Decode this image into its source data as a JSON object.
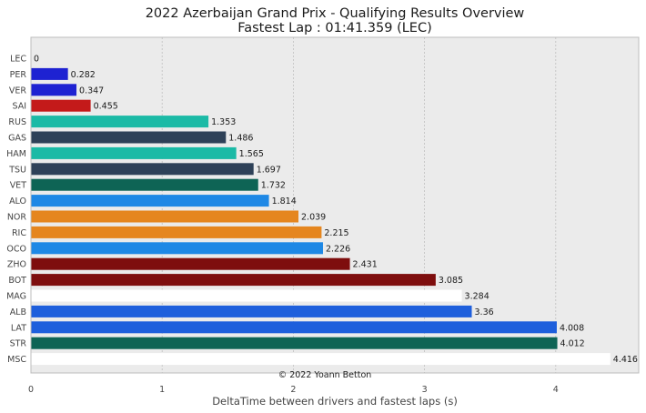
{
  "chart_data": {
    "type": "bar",
    "orientation": "horizontal",
    "title": "2022 Azerbaijan Grand Prix - Qualifying Results Overview",
    "subtitle": "Fastest Lap : 01:41.359 (LEC)",
    "xlabel": "DeltaTime between drivers and fastest laps (s)",
    "ylabel": "",
    "xlim": [
      0,
      4.64
    ],
    "xticks": [
      "0",
      "1",
      "2",
      "3",
      "4"
    ],
    "grid": true,
    "annotation": "© 2022 Yoann Betton",
    "categories": [
      "LEC",
      "PER",
      "VER",
      "SAI",
      "RUS",
      "GAS",
      "HAM",
      "TSU",
      "VET",
      "ALO",
      "NOR",
      "RIC",
      "OCO",
      "ZHO",
      "BOT",
      "MAG",
      "ALB",
      "LAT",
      "STR",
      "MSC"
    ],
    "values": [
      0,
      0.282,
      0.347,
      0.455,
      1.353,
      1.486,
      1.565,
      1.697,
      1.732,
      1.814,
      2.039,
      2.215,
      2.226,
      2.431,
      3.085,
      3.284,
      3.36,
      4.008,
      4.012,
      4.416
    ],
    "value_labels": [
      "0",
      "0.282",
      "0.347",
      "0.455",
      "1.353",
      "1.486",
      "1.565",
      "1.697",
      "1.732",
      "1.814",
      "2.039",
      "2.215",
      "2.226",
      "2.431",
      "3.085",
      "3.284",
      "3.36",
      "4.008",
      "4.012",
      "4.416"
    ],
    "colors": [
      "#dc0000",
      "#1e22d2",
      "#1e22d2",
      "#c41a1a",
      "#1bbaa6",
      "#2e4158",
      "#1bbaa6",
      "#2e4158",
      "#0e6455",
      "#1e88e5",
      "#e5861f",
      "#e5861f",
      "#1e88e5",
      "#7e0e0e",
      "#7e0e0e",
      "#ffffff",
      "#1e5fdc",
      "#1e5fdc",
      "#0e6455",
      "#ffffff"
    ]
  }
}
